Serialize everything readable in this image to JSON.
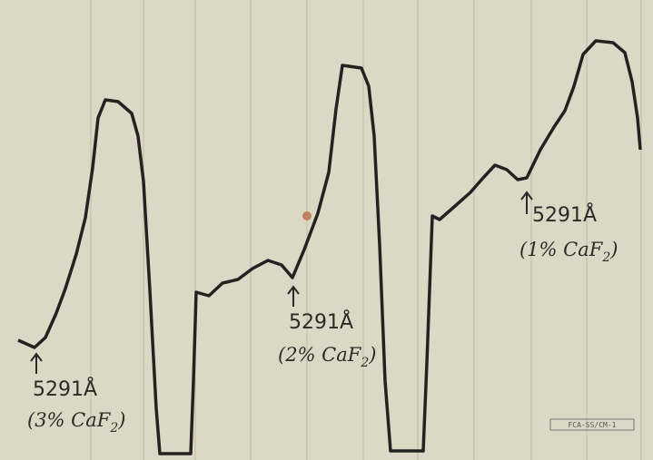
{
  "annotations": [
    {
      "line": "5291Å",
      "sample": "(3% CaF",
      "subscript": "2",
      "close": ")"
    },
    {
      "line": "5291Å",
      "sample": "(2% CaF",
      "subscript": "2",
      "close": ")"
    },
    {
      "line": "5291Å",
      "sample": "(1% CaF",
      "subscript": "2",
      "close": ")"
    }
  ],
  "stamp": "FCA-SS/CM-1"
}
